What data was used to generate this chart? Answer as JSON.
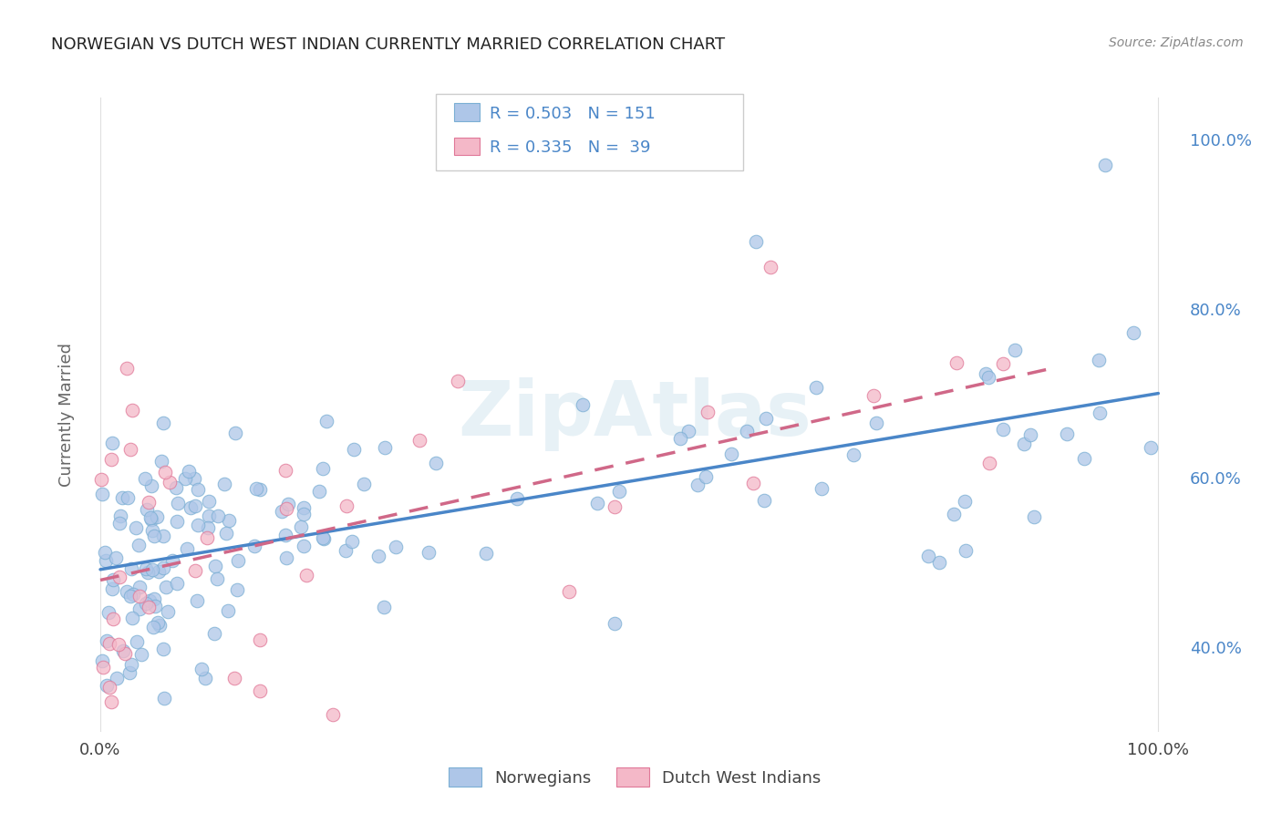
{
  "title": "NORWEGIAN VS DUTCH WEST INDIAN CURRENTLY MARRIED CORRELATION CHART",
  "source": "Source: ZipAtlas.com",
  "ylabel": "Currently Married",
  "blue_color": "#aec6e8",
  "blue_edge": "#7bafd4",
  "pink_color": "#f4b8c8",
  "pink_edge": "#e07898",
  "blue_line_color": "#4a86c8",
  "pink_line_color": "#d06888",
  "pink_line_dash": [
    6,
    4
  ],
  "watermark": "ZipAtlas",
  "nor_R": 0.503,
  "nor_N": 151,
  "dut_R": 0.335,
  "dut_N": 39,
  "xlim": [
    -1,
    102
  ],
  "ylim": [
    30,
    105
  ],
  "yticks": [
    40,
    60,
    80,
    100
  ],
  "ytick_labels": [
    "40.0%",
    "60.0%",
    "80.0%",
    "100.0%"
  ],
  "bg_color": "#ffffff",
  "grid_color": "#e0e0e0",
  "legend_box_color": "#f5f5f5",
  "legend_edge_color": "#cccccc",
  "stat_color": "#4a86c8",
  "title_color": "#222222",
  "source_color": "#888888",
  "ylabel_color": "#666666",
  "tick_color": "#4a86c8"
}
